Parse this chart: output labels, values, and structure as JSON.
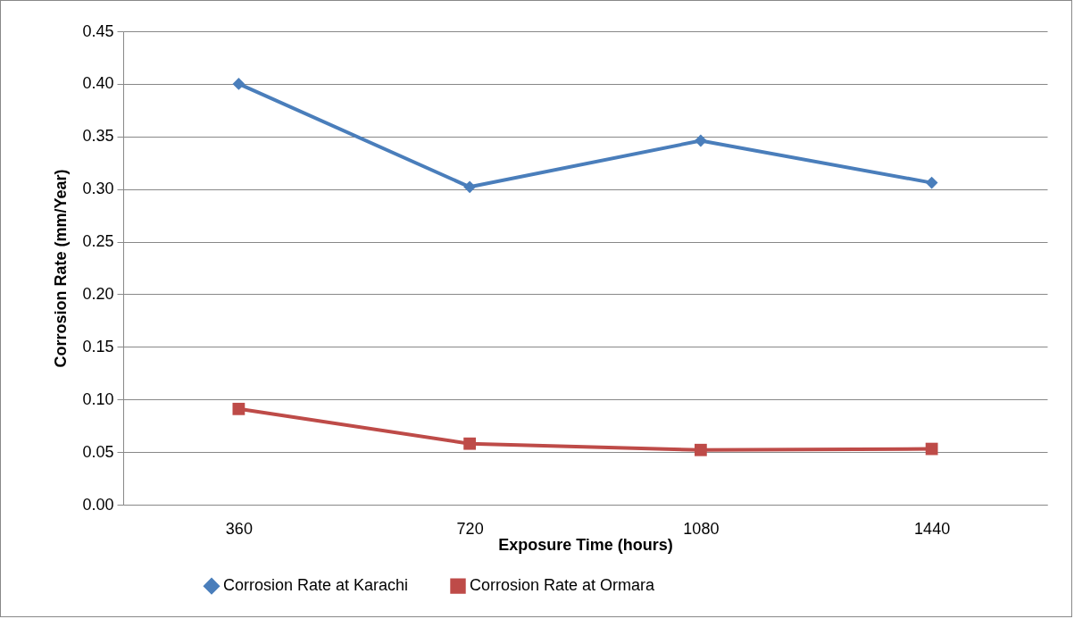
{
  "chart_data": {
    "type": "line",
    "xlabel": "Exposure Time (hours)",
    "ylabel": "Corrosion Rate (mm/Year)",
    "categories": [
      "360",
      "720",
      "1080",
      "1440"
    ],
    "series": [
      {
        "name": "Corrosion Rate at Karachi",
        "color": "#4a7ebb",
        "marker": "diamond",
        "values": [
          0.4,
          0.302,
          0.346,
          0.306
        ]
      },
      {
        "name": "Corrosion Rate at Ormara",
        "color": "#be4b48",
        "marker": "square",
        "values": [
          0.091,
          0.058,
          0.052,
          0.053
        ]
      }
    ],
    "ylim": [
      0,
      0.45
    ],
    "yticks": [
      {
        "value": 0,
        "label": "0.00"
      },
      {
        "value": 0.05,
        "label": "0.05"
      },
      {
        "value": 0.1,
        "label": "0.10"
      },
      {
        "value": 0.15,
        "label": "0.15"
      },
      {
        "value": 0.2,
        "label": "0.20"
      },
      {
        "value": 0.25,
        "label": "0.25"
      },
      {
        "value": 0.3,
        "label": "0.30"
      },
      {
        "value": 0.35,
        "label": "0.35"
      },
      {
        "value": 0.4,
        "label": "0.40"
      },
      {
        "value": 0.45,
        "label": "0.45"
      }
    ],
    "grid": "y",
    "legend": "bottom",
    "line_style": "solid"
  }
}
